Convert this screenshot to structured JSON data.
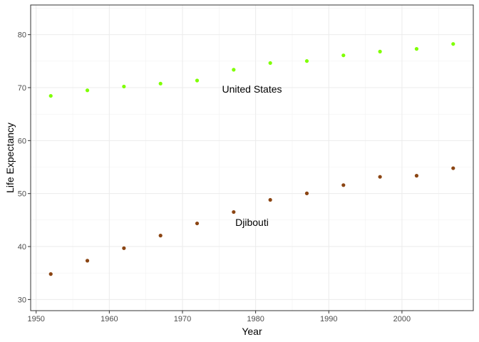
{
  "chart_data": {
    "type": "scatter",
    "title": "",
    "xlabel": "Year",
    "ylabel": "Life Expectancy",
    "xlim": [
      1949.25,
      2009.75
    ],
    "ylim": [
      27.9,
      85.6
    ],
    "x_ticks": [
      1950,
      1960,
      1970,
      1980,
      1990,
      2000
    ],
    "y_ticks": [
      30,
      40,
      50,
      60,
      70,
      80
    ],
    "grid": true,
    "legend": "none",
    "series": [
      {
        "color": "#7FFF00",
        "x": [
          1952,
          1957,
          1962,
          1967,
          1972,
          1977,
          1982,
          1987,
          1992,
          1997,
          2002,
          2007
        ],
        "y": [
          68.44,
          69.49,
          70.21,
          70.76,
          71.34,
          73.38,
          74.65,
          75.02,
          76.09,
          76.81,
          77.31,
          78.24
        ]
      },
      {
        "color": "#8B4513",
        "x": [
          1952,
          1957,
          1962,
          1967,
          1972,
          1977,
          1982,
          1987,
          1992,
          1997,
          2002,
          2007
        ],
        "y": [
          34.81,
          37.33,
          39.69,
          42.07,
          44.37,
          46.52,
          48.81,
          50.04,
          51.6,
          53.16,
          53.37,
          54.79
        ]
      }
    ],
    "annotations": [
      {
        "text": "United States",
        "x": 1979.5,
        "y": 69.7
      },
      {
        "text": "Djibouti",
        "x": 1979.5,
        "y": 44.6
      }
    ]
  }
}
